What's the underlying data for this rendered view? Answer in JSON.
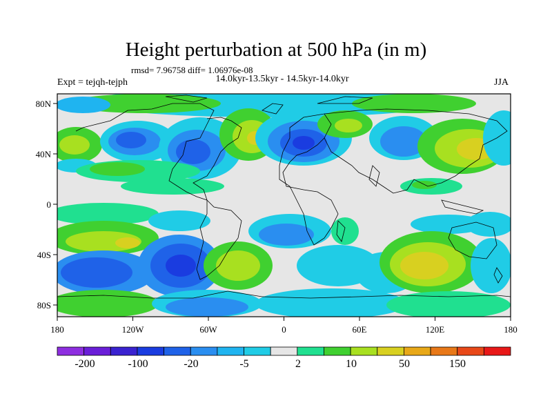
{
  "title": "Height perturbation at 500 hPa (in m)",
  "stats": "rmsd= 7.96758 diff= 1.06976e-08",
  "period": "14.0kyr-13.5kyr - 14.5kyr-14.0kyr",
  "expt": "Expt = tejqh-tejph",
  "season": "JJA",
  "x_ticks": [
    "180",
    "120W",
    "60W",
    "0",
    "60E",
    "120E",
    "180"
  ],
  "y_ticks": [
    "80N",
    "40N",
    "0",
    "40S",
    "80S"
  ],
  "colorbar": {
    "colors": [
      "#8e2ee0",
      "#6a1ed8",
      "#3a22d0",
      "#1a3ce0",
      "#1f62e8",
      "#2a8ef0",
      "#1fb4f0",
      "#20cce6",
      "#e6e6e6",
      "#20e090",
      "#40d030",
      "#a8e020",
      "#d8d020",
      "#e8a818",
      "#e87818",
      "#e84818",
      "#e81818"
    ],
    "labels": [
      "-200",
      "-100",
      "-20",
      "-5",
      "2",
      "10",
      "50",
      "150"
    ]
  },
  "icons": {
    "land": "coastline-outline"
  }
}
